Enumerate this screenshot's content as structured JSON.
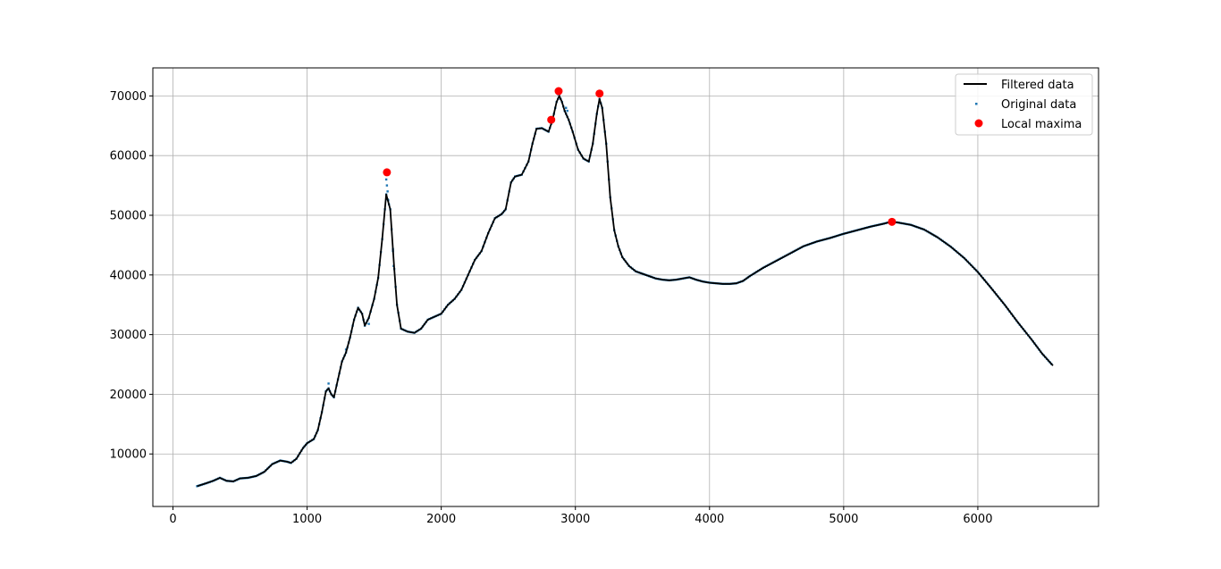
{
  "chart_data": {
    "type": "line",
    "title": "",
    "xlabel": "",
    "ylabel": "",
    "xlim": [
      -150,
      6900
    ],
    "ylim": [
      1200,
      74700
    ],
    "xticks": [
      0,
      1000,
      2000,
      3000,
      4000,
      5000,
      6000
    ],
    "yticks": [
      10000,
      20000,
      30000,
      40000,
      50000,
      60000,
      70000
    ],
    "grid": true,
    "legend_position": "top-right",
    "colors": {
      "filtered": "#000000",
      "original": "#1f77b4",
      "maxima": "#ff0000",
      "grid": "#b0b0b0"
    },
    "series": [
      {
        "name": "Filtered data",
        "style": "line",
        "points": [
          [
            180,
            4600
          ],
          [
            250,
            5100
          ],
          [
            300,
            5500
          ],
          [
            350,
            6000
          ],
          [
            400,
            5500
          ],
          [
            450,
            5400
          ],
          [
            500,
            5900
          ],
          [
            560,
            6000
          ],
          [
            620,
            6300
          ],
          [
            680,
            7000
          ],
          [
            740,
            8300
          ],
          [
            800,
            8900
          ],
          [
            850,
            8700
          ],
          [
            880,
            8500
          ],
          [
            920,
            9200
          ],
          [
            970,
            11000
          ],
          [
            1000,
            11800
          ],
          [
            1050,
            12500
          ],
          [
            1080,
            14000
          ],
          [
            1110,
            17000
          ],
          [
            1140,
            20500
          ],
          [
            1160,
            21000
          ],
          [
            1180,
            20000
          ],
          [
            1200,
            19500
          ],
          [
            1230,
            22500
          ],
          [
            1260,
            25500
          ],
          [
            1290,
            27000
          ],
          [
            1320,
            29500
          ],
          [
            1350,
            32500
          ],
          [
            1380,
            34500
          ],
          [
            1410,
            33500
          ],
          [
            1430,
            31500
          ],
          [
            1460,
            32800
          ],
          [
            1500,
            36000
          ],
          [
            1530,
            39500
          ],
          [
            1560,
            46000
          ],
          [
            1590,
            53500
          ],
          [
            1620,
            51000
          ],
          [
            1650,
            41000
          ],
          [
            1670,
            35000
          ],
          [
            1700,
            31000
          ],
          [
            1750,
            30500
          ],
          [
            1800,
            30300
          ],
          [
            1850,
            31000
          ],
          [
            1900,
            32500
          ],
          [
            1950,
            33000
          ],
          [
            2000,
            33500
          ],
          [
            2050,
            35000
          ],
          [
            2100,
            36000
          ],
          [
            2150,
            37500
          ],
          [
            2200,
            40000
          ],
          [
            2250,
            42500
          ],
          [
            2300,
            44000
          ],
          [
            2350,
            47000
          ],
          [
            2400,
            49500
          ],
          [
            2450,
            50200
          ],
          [
            2480,
            51000
          ],
          [
            2520,
            55500
          ],
          [
            2550,
            56500
          ],
          [
            2600,
            56800
          ],
          [
            2650,
            59000
          ],
          [
            2680,
            62000
          ],
          [
            2710,
            64500
          ],
          [
            2750,
            64600
          ],
          [
            2800,
            64000
          ],
          [
            2830,
            66000
          ],
          [
            2860,
            69000
          ],
          [
            2880,
            70000
          ],
          [
            2900,
            69000
          ],
          [
            2920,
            67500
          ],
          [
            2950,
            66000
          ],
          [
            2980,
            64000
          ],
          [
            3020,
            61000
          ],
          [
            3060,
            59500
          ],
          [
            3100,
            59000
          ],
          [
            3130,
            62000
          ],
          [
            3160,
            67000
          ],
          [
            3180,
            69500
          ],
          [
            3200,
            68000
          ],
          [
            3230,
            62000
          ],
          [
            3260,
            53000
          ],
          [
            3290,
            47500
          ],
          [
            3320,
            44800
          ],
          [
            3350,
            43000
          ],
          [
            3400,
            41500
          ],
          [
            3450,
            40600
          ],
          [
            3500,
            40200
          ],
          [
            3550,
            39800
          ],
          [
            3600,
            39400
          ],
          [
            3650,
            39200
          ],
          [
            3700,
            39100
          ],
          [
            3750,
            39200
          ],
          [
            3800,
            39400
          ],
          [
            3850,
            39600
          ],
          [
            3900,
            39200
          ],
          [
            3950,
            38900
          ],
          [
            4000,
            38700
          ],
          [
            4050,
            38600
          ],
          [
            4100,
            38500
          ],
          [
            4150,
            38500
          ],
          [
            4200,
            38600
          ],
          [
            4250,
            39000
          ],
          [
            4300,
            39800
          ],
          [
            4400,
            41200
          ],
          [
            4500,
            42400
          ],
          [
            4600,
            43600
          ],
          [
            4700,
            44800
          ],
          [
            4800,
            45600
          ],
          [
            4900,
            46200
          ],
          [
            5000,
            46900
          ],
          [
            5100,
            47500
          ],
          [
            5200,
            48100
          ],
          [
            5300,
            48600
          ],
          [
            5350,
            48900
          ],
          [
            5400,
            48800
          ],
          [
            5500,
            48400
          ],
          [
            5600,
            47600
          ],
          [
            5700,
            46300
          ],
          [
            5800,
            44700
          ],
          [
            5900,
            42800
          ],
          [
            6000,
            40500
          ],
          [
            6100,
            37800
          ],
          [
            6200,
            35000
          ],
          [
            6300,
            32000
          ],
          [
            6400,
            29200
          ],
          [
            6480,
            26800
          ],
          [
            6560,
            24800
          ]
        ]
      },
      {
        "name": "Original data",
        "style": "points",
        "points_from": "Filtered data",
        "extra_points": [
          [
            1590,
            56000
          ],
          [
            1595,
            55000
          ],
          [
            1600,
            54000
          ],
          [
            1605,
            52500
          ],
          [
            1640,
            44000
          ],
          [
            1645,
            41500
          ],
          [
            1160,
            21800
          ],
          [
            1290,
            27500
          ],
          [
            1460,
            31800
          ],
          [
            2870,
            70300
          ],
          [
            2930,
            68000
          ],
          [
            2940,
            67500
          ]
        ]
      },
      {
        "name": "Local maxima",
        "style": "markers",
        "points": [
          [
            1595,
            57200
          ],
          [
            2820,
            66000
          ],
          [
            2875,
            70800
          ],
          [
            3180,
            70400
          ],
          [
            5360,
            48900
          ]
        ]
      }
    ],
    "legend": {
      "entries": [
        "Filtered data",
        "Original data",
        "Local maxima"
      ]
    }
  }
}
